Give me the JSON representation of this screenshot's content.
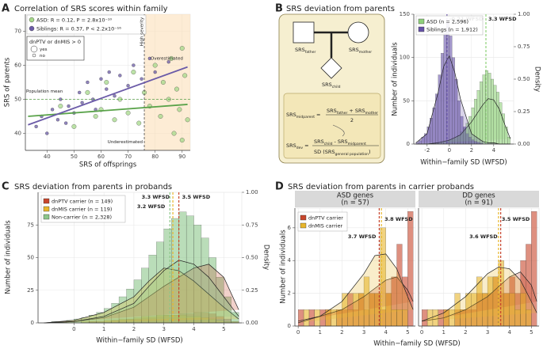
{
  "chart_data": [
    {
      "type": "scatter",
      "panel": "A",
      "title": "Correlation of SRS scores within family",
      "x_label": "SRS of offsprings",
      "y_label": "SRS of parents",
      "xlim": [
        32,
        93
      ],
      "ylim": [
        35,
        75
      ],
      "xticks": [
        40,
        50,
        60,
        70,
        80,
        90
      ],
      "yticks": [
        40,
        50,
        60,
        70
      ],
      "grid": true,
      "series": [
        {
          "name": "ASD: R = 0.12, P = 2.8x10⁻¹⁰",
          "color": "#a6d98a",
          "x": [
            45,
            50,
            55,
            58,
            60,
            62,
            65,
            67,
            70,
            72,
            74,
            76,
            78,
            80,
            82,
            83,
            85,
            86,
            87,
            88,
            89,
            90,
            90,
            91,
            92
          ],
          "values": [
            48,
            42,
            52,
            45,
            47,
            55,
            44,
            50,
            46,
            58,
            43,
            52,
            48,
            60,
            45,
            55,
            50,
            62,
            40,
            53,
            47,
            65,
            38,
            57,
            44
          ],
          "fit_x": [
            33,
            92
          ],
          "fit": [
            45,
            48.5
          ]
        },
        {
          "name": "Siblings: R = 0.37, P < 2.2x10⁻¹⁶",
          "color": "#6b5ba8",
          "x": [
            36,
            38,
            40,
            42,
            44,
            45,
            47,
            48,
            50,
            52,
            53,
            55,
            57,
            58,
            60,
            62,
            63,
            65,
            67,
            70,
            72,
            75,
            78,
            80,
            85
          ],
          "values": [
            42,
            45,
            40,
            47,
            44,
            50,
            43,
            48,
            46,
            52,
            49,
            55,
            50,
            47,
            56,
            53,
            58,
            51,
            57,
            54,
            60,
            56,
            62,
            58,
            61
          ],
          "fit_x": [
            33,
            92
          ],
          "fit": [
            42.5,
            59.5
          ]
        }
      ],
      "size_legend": {
        "title": "dnPTV or dnMIS > 0",
        "labels": [
          "yes",
          "no"
        ]
      },
      "reference_lines": {
        "population_mean": 50,
        "high_severity": 76
      },
      "annotations": [
        "Population mean",
        "High severity",
        "Overestimated",
        "Underestimated"
      ]
    },
    {
      "type": "histogram",
      "panel": "B",
      "title": "SRS deviation from parents",
      "x_label": "Within−family SD (WFSD)",
      "y_label": "Number of individuals",
      "y2_label": "Density",
      "xlim": [
        -3.2,
        5.8
      ],
      "xticks": [
        -2,
        0,
        2,
        4
      ],
      "ylim": [
        0,
        150
      ],
      "yticks": [
        0,
        50,
        100,
        150
      ],
      "y2lim": [
        0,
        1
      ],
      "y2ticks": [
        {
          "value": 0,
          "label": "0.00"
        },
        {
          "value": 0.25,
          "label": "0.25"
        },
        {
          "value": 0.5,
          "label": "0.50"
        },
        {
          "value": 0.75,
          "label": "0.75"
        },
        {
          "value": 1,
          "label": "1.00"
        }
      ],
      "grid": true,
      "bins": [
        -3,
        -2.75,
        -2.5,
        -2.25,
        -2,
        -1.75,
        -1.5,
        -1.25,
        -1,
        -0.75,
        -0.5,
        -0.25,
        0,
        0.25,
        0.5,
        0.75,
        1,
        1.25,
        1.5,
        1.75,
        2,
        2.25,
        2.5,
        2.75,
        3,
        3.25,
        3.5,
        3.75,
        4,
        4.25,
        4.5,
        4.75,
        5,
        5.25,
        5.5
      ],
      "density_x": [
        -3,
        -2,
        -1,
        -0.5,
        0,
        0.5,
        1,
        2,
        3,
        3.5,
        4,
        4.5,
        5,
        5.5
      ],
      "series": [
        {
          "name": "ASD (n = 2,596)",
          "color": "#8fd17a",
          "values": [
            0,
            0,
            0,
            0,
            0,
            0,
            1,
            1,
            2,
            2,
            3,
            4,
            5,
            6,
            8,
            10,
            14,
            18,
            24,
            32,
            42,
            52,
            62,
            72,
            80,
            85,
            82,
            75,
            68,
            60,
            48,
            35,
            20,
            8
          ],
          "density": [
            0,
            0,
            0.01,
            0.02,
            0.03,
            0.05,
            0.07,
            0.17,
            0.3,
            0.35,
            0.34,
            0.27,
            0.15,
            0.04
          ],
          "mean": 3.3,
          "mean_label": "3.3 WFSD"
        },
        {
          "name": "Siblings (n = 1,912)",
          "color": "#6652a8",
          "values": [
            2,
            4,
            8,
            12,
            20,
            30,
            42,
            58,
            80,
            105,
            130,
            140,
            125,
            100,
            75,
            50,
            32,
            20,
            12,
            8,
            5,
            3,
            2,
            1,
            0,
            0,
            0,
            0,
            0,
            0,
            0,
            0,
            0,
            0
          ],
          "density": [
            0.01,
            0.08,
            0.4,
            0.6,
            0.68,
            0.55,
            0.35,
            0.08,
            0.02,
            0.01,
            0.01,
            0,
            0,
            0
          ],
          "mean": -0.21,
          "mean_label": "-0.21 WFSD"
        }
      ],
      "diagram": {
        "father": [
          "SRS",
          "father"
        ],
        "mother": [
          "SRS",
          "mother"
        ],
        "child": [
          "SRS",
          "child"
        ],
        "midparent": [
          "SRS",
          "midparent"
        ],
        "dev": [
          "SRS",
          "dev"
        ],
        "sd": [
          "SD (SRS",
          "general population",
          ")"
        ],
        "plus": "+",
        "minus": "-",
        "equals": "=",
        "two": "2"
      }
    },
    {
      "type": "histogram",
      "panel": "C",
      "title": "SRS deviation from parents in probands",
      "x_label": "Within−family SD (WFSD)",
      "y_label": "Number of individuals",
      "y2_label": "Density",
      "xlim": [
        -1.2,
        5.6
      ],
      "xticks": [
        0,
        1,
        2,
        3,
        4,
        5
      ],
      "ylim": [
        0,
        100
      ],
      "yticks": [
        0,
        25,
        50,
        75
      ],
      "y2lim": [
        0,
        1
      ],
      "y2ticks": [
        {
          "value": 0,
          "label": "0.00"
        },
        {
          "value": 0.25,
          "label": "0.25"
        },
        {
          "value": 0.5,
          "label": "0.50"
        },
        {
          "value": 0.75,
          "label": "0.75"
        },
        {
          "value": 1,
          "label": "1.00"
        }
      ],
      "grid": true,
      "bins": [
        -1,
        -0.75,
        -0.5,
        -0.25,
        0,
        0.25,
        0.5,
        0.75,
        1,
        1.25,
        1.5,
        1.75,
        2,
        2.25,
        2.5,
        2.75,
        3,
        3.25,
        3.5,
        3.75,
        4,
        4.25,
        4.5,
        4.75,
        5,
        5.25,
        5.5
      ],
      "density_x": [
        -1,
        0,
        1,
        2,
        2.5,
        3,
        3.5,
        4,
        4.5,
        5,
        5.5
      ],
      "series": [
        {
          "name": "dnPTV carrier (n = 149)",
          "color": "#c8462c",
          "values": [
            0,
            0,
            0,
            0,
            0,
            0,
            1,
            1,
            1,
            2,
            2,
            3,
            3,
            4,
            4,
            5,
            6,
            6,
            7,
            7,
            8,
            8,
            7,
            5,
            3,
            1
          ],
          "density": [
            0,
            0.01,
            0.04,
            0.12,
            0.2,
            0.28,
            0.35,
            0.42,
            0.45,
            0.35,
            0.1
          ],
          "mean": 3.5,
          "mean_label": "3.5 WFSD"
        },
        {
          "name": "dnMIS carrier (n = 119)",
          "color": "#e8b62c",
          "values": [
            0,
            0,
            0,
            0,
            0,
            1,
            1,
            1,
            2,
            2,
            3,
            3,
            4,
            5,
            5,
            6,
            6,
            6,
            6,
            5,
            5,
            4,
            3,
            2,
            1,
            1
          ],
          "density": [
            0,
            0.02,
            0.08,
            0.2,
            0.32,
            0.42,
            0.4,
            0.32,
            0.22,
            0.12,
            0.03
          ],
          "mean": 3.3,
          "mean_label": "3.3 WFSD"
        },
        {
          "name": "Non-carrier (n = 2,328)",
          "color": "#8cc68a",
          "values": [
            0,
            1,
            1,
            2,
            3,
            4,
            6,
            8,
            11,
            15,
            20,
            26,
            33,
            42,
            52,
            62,
            72,
            80,
            85,
            82,
            75,
            65,
            50,
            35,
            20,
            8
          ],
          "density": [
            0,
            0.01,
            0.05,
            0.15,
            0.28,
            0.4,
            0.48,
            0.45,
            0.35,
            0.2,
            0.05
          ],
          "mean": 3.2,
          "mean_label": "3.2 WFSD"
        }
      ]
    },
    {
      "type": "histogram_facets",
      "panel": "D",
      "title": "SRS deviation from parents in carrier probands",
      "x_label": "Within−family SD (WFSD)",
      "y_label": "Number of individuals",
      "xlim": [
        -0.15,
        5.35
      ],
      "xticks": [
        0,
        1,
        2,
        3,
        4,
        5
      ],
      "ylim": [
        0,
        7.2
      ],
      "yticks": [
        0,
        2,
        4,
        6
      ],
      "grid": true,
      "bins": [
        0,
        0.25,
        0.5,
        0.75,
        1,
        1.25,
        1.5,
        1.75,
        2,
        2.25,
        2.5,
        2.75,
        3,
        3.25,
        3.5,
        3.75,
        4,
        4.25,
        4.5,
        4.75,
        5,
        5.25
      ],
      "curve_x": [
        0,
        1,
        2,
        3,
        3.5,
        4,
        4.5,
        5,
        5.25
      ],
      "facets": [
        {
          "title": [
            "ASD genes",
            "(n = 57)"
          ],
          "series": [
            {
              "name": "dnPTV carrier",
              "color": "#c8462c",
              "values": [
                1,
                0,
                1,
                0,
                1,
                1,
                0,
                1,
                1,
                2,
                1,
                2,
                1,
                2,
                2,
                1,
                2,
                3,
                5,
                3,
                7
              ],
              "curve": [
                0.3,
                0.6,
                1.0,
                1.8,
                2.3,
                2.8,
                3.0,
                2.2,
                1.5
              ],
              "mean": 3.7,
              "mean_label": "3.7 WFSD"
            },
            {
              "name": "dnMIS carrier",
              "color": "#e8b62c",
              "values": [
                0,
                1,
                0,
                1,
                0,
                1,
                1,
                1,
                2,
                1,
                2,
                2,
                3,
                2,
                2,
                6,
                2,
                1,
                1,
                1,
                0
              ],
              "curve": [
                0.2,
                0.6,
                1.5,
                3.2,
                4.3,
                4.4,
                3.5,
                1.8,
                1.0
              ],
              "mean": 3.8,
              "mean_label": "3.8 WFSD"
            }
          ]
        },
        {
          "title": [
            "DD genes",
            "(n = 91)"
          ],
          "series": [
            {
              "name": "dnPTV carrier",
              "color": "#c8462c",
              "values": [
                1,
                0,
                0,
                1,
                1,
                0,
                1,
                1,
                1,
                1,
                2,
                2,
                2,
                3,
                2,
                2,
                3,
                2,
                4,
                5,
                7
              ],
              "curve": [
                0.3,
                0.5,
                1.0,
                1.8,
                2.4,
                3.0,
                3.3,
                2.5,
                1.5
              ],
              "mean": 3.6,
              "mean_label": "3.6 WFSD"
            },
            {
              "name": "dnMIS carrier",
              "color": "#e8b62c",
              "values": [
                0,
                1,
                1,
                0,
                1,
                1,
                2,
                1,
                2,
                2,
                3,
                2,
                3,
                3,
                4,
                2,
                2,
                1,
                2,
                1,
                0
              ],
              "curve": [
                0.3,
                0.8,
                1.8,
                3.2,
                3.6,
                3.5,
                2.8,
                1.5,
                0.8
              ],
              "mean": 3.5,
              "mean_label": "3.5 WFSD"
            }
          ]
        }
      ]
    }
  ]
}
